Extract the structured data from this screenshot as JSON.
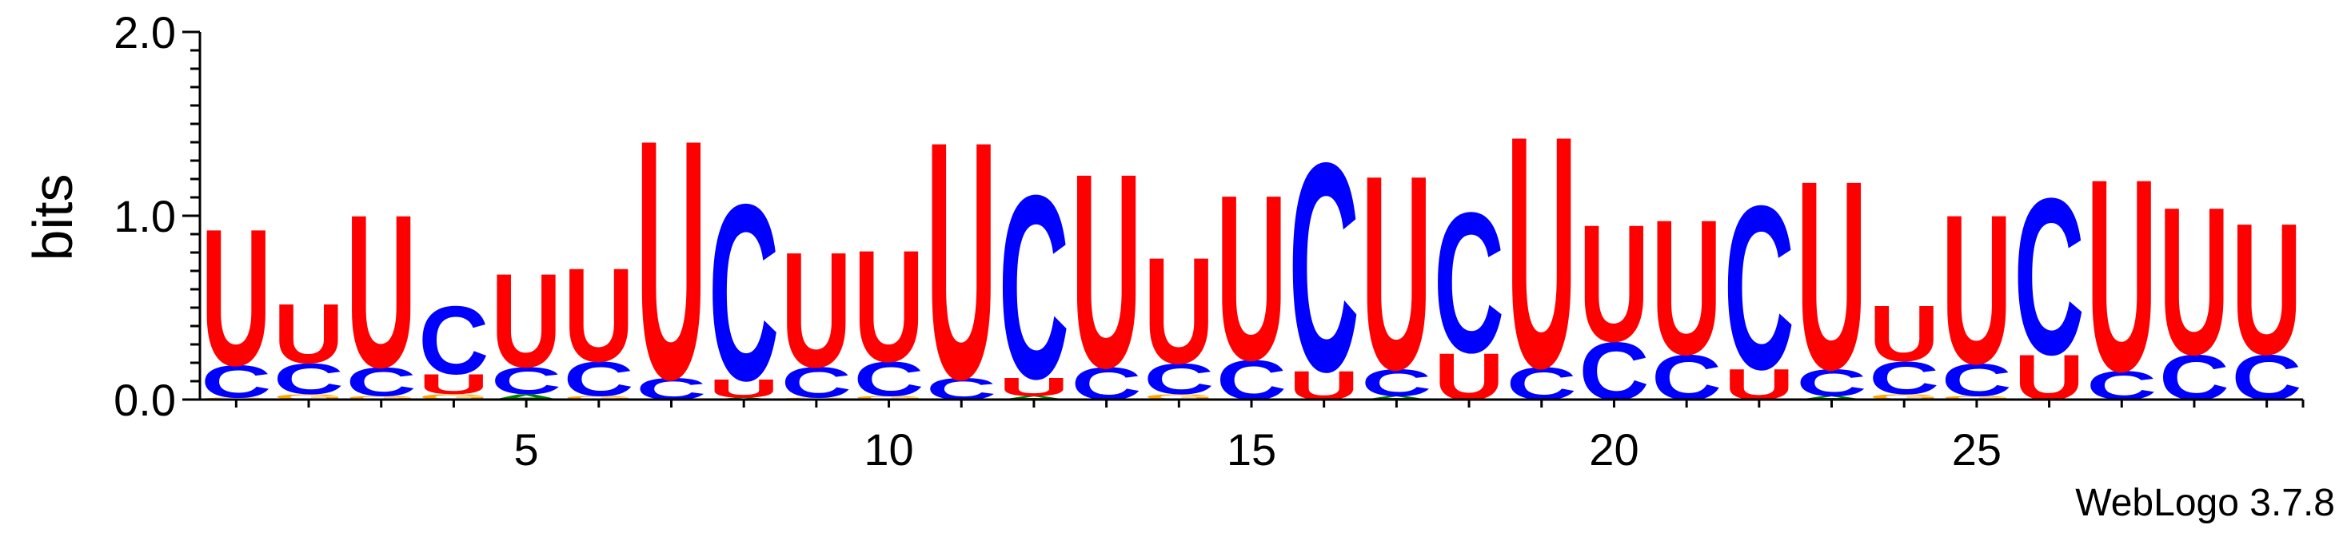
{
  "chart_data": {
    "type": "sequence-logo",
    "ylabel": "bits",
    "ylim": [
      0,
      2
    ],
    "y_ticks": [
      "0.0",
      "1.0",
      "2.0"
    ],
    "x_ticks": [
      "5",
      "10",
      "15",
      "20",
      "25"
    ],
    "footer": "WebLogo 3.7.8",
    "colors": {
      "U": "#ff0000",
      "C": "#0000ff",
      "G": "#ffa500",
      "A": "#008000"
    },
    "positions": [
      {
        "pos": 1,
        "stack": [
          [
            "G",
            0.01
          ],
          [
            "C",
            0.18
          ],
          [
            "U",
            0.76
          ]
        ]
      },
      {
        "pos": 2,
        "stack": [
          [
            "G",
            0.03
          ],
          [
            "C",
            0.17
          ],
          [
            "U",
            0.33
          ]
        ]
      },
      {
        "pos": 3,
        "stack": [
          [
            "G",
            0.02
          ],
          [
            "C",
            0.16
          ],
          [
            "U",
            0.85
          ]
        ]
      },
      {
        "pos": 4,
        "stack": [
          [
            "G",
            0.03
          ],
          [
            "U",
            0.11
          ],
          [
            "C",
            0.38
          ]
        ]
      },
      {
        "pos": 5,
        "stack": [
          [
            "A",
            0.03
          ],
          [
            "C",
            0.15
          ],
          [
            "U",
            0.52
          ]
        ]
      },
      {
        "pos": 6,
        "stack": [
          [
            "G",
            0.02
          ],
          [
            "C",
            0.19
          ],
          [
            "U",
            0.52
          ]
        ]
      },
      {
        "pos": 7,
        "stack": [
          [
            "C",
            0.12
          ],
          [
            "U",
            1.33
          ]
        ]
      },
      {
        "pos": 8,
        "stack": [
          [
            "A",
            0.01
          ],
          [
            "U",
            0.1
          ],
          [
            "C",
            0.98
          ]
        ]
      },
      {
        "pos": 9,
        "stack": [
          [
            "G",
            0.01
          ],
          [
            "C",
            0.17
          ],
          [
            "U",
            0.64
          ]
        ]
      },
      {
        "pos": 10,
        "stack": [
          [
            "G",
            0.02
          ],
          [
            "C",
            0.19
          ],
          [
            "U",
            0.62
          ]
        ]
      },
      {
        "pos": 11,
        "stack": [
          [
            "C",
            0.12
          ],
          [
            "U",
            1.32
          ]
        ]
      },
      {
        "pos": 12,
        "stack": [
          [
            "A",
            0.02
          ],
          [
            "U",
            0.1
          ],
          [
            "C",
            1.02
          ]
        ]
      },
      {
        "pos": 13,
        "stack": [
          [
            "C",
            0.18
          ],
          [
            "U",
            1.08
          ]
        ]
      },
      {
        "pos": 14,
        "stack": [
          [
            "G",
            0.03
          ],
          [
            "C",
            0.17
          ],
          [
            "U",
            0.59
          ]
        ]
      },
      {
        "pos": 15,
        "stack": [
          [
            "C",
            0.22
          ],
          [
            "U",
            0.92
          ]
        ]
      },
      {
        "pos": 16,
        "stack": [
          [
            "U",
            0.16
          ],
          [
            "C",
            1.16
          ]
        ]
      },
      {
        "pos": 17,
        "stack": [
          [
            "A",
            0.02
          ],
          [
            "C",
            0.15
          ],
          [
            "U",
            1.08
          ]
        ]
      },
      {
        "pos": 18,
        "stack": [
          [
            "U",
            0.26
          ],
          [
            "C",
            0.78
          ]
        ]
      },
      {
        "pos": 19,
        "stack": [
          [
            "C",
            0.18
          ],
          [
            "U",
            1.29
          ]
        ]
      },
      {
        "pos": 20,
        "stack": [
          [
            "C",
            0.32
          ],
          [
            "U",
            0.65
          ]
        ]
      },
      {
        "pos": 21,
        "stack": [
          [
            "C",
            0.25
          ],
          [
            "U",
            0.75
          ]
        ]
      },
      {
        "pos": 22,
        "stack": [
          [
            "U",
            0.17
          ],
          [
            "C",
            0.91
          ]
        ]
      },
      {
        "pos": 23,
        "stack": [
          [
            "A",
            0.02
          ],
          [
            "C",
            0.15
          ],
          [
            "U",
            1.05
          ]
        ]
      },
      {
        "pos": 24,
        "stack": [
          [
            "G",
            0.03
          ],
          [
            "C",
            0.18
          ],
          [
            "U",
            0.31
          ]
        ]
      },
      {
        "pos": 25,
        "stack": [
          [
            "G",
            0.02
          ],
          [
            "C",
            0.18
          ],
          [
            "U",
            0.83
          ]
        ]
      },
      {
        "pos": 26,
        "stack": [
          [
            "U",
            0.25
          ],
          [
            "C",
            0.87
          ]
        ]
      },
      {
        "pos": 27,
        "stack": [
          [
            "C",
            0.16
          ],
          [
            "U",
            1.07
          ]
        ]
      },
      {
        "pos": 28,
        "stack": [
          [
            "C",
            0.25
          ],
          [
            "U",
            0.82
          ]
        ]
      },
      {
        "pos": 29,
        "stack": [
          [
            "C",
            0.25
          ],
          [
            "U",
            0.73
          ]
        ]
      }
    ]
  }
}
